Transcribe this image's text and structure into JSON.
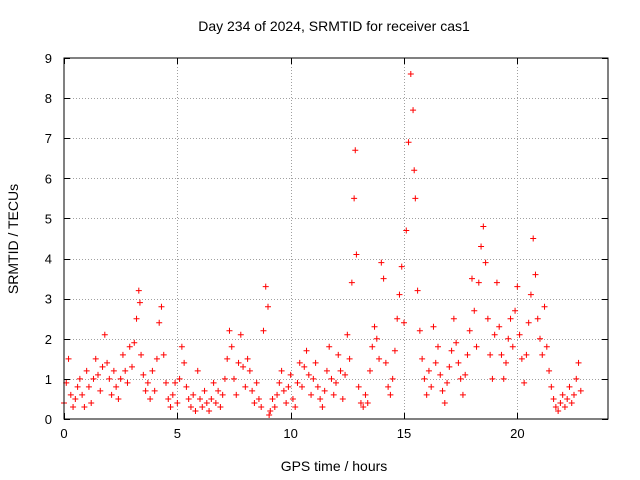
{
  "chart_data": {
    "type": "scatter",
    "title": "Day 234 of 2024, SRMTID for receiver cas1",
    "xlabel": "GPS time / hours",
    "ylabel": "SRMTID / TECUs",
    "xlim": [
      0,
      24
    ],
    "ylim": [
      0,
      9
    ],
    "xticks": [
      0,
      5,
      10,
      15,
      20
    ],
    "xtick_labels": [
      "0",
      "5",
      "10",
      "15",
      "20"
    ],
    "yticks": [
      0,
      1,
      2,
      3,
      4,
      5,
      6,
      7,
      8,
      9
    ],
    "ytick_labels": [
      "0",
      "1",
      "2",
      "3",
      "4",
      "5",
      "6",
      "7",
      "8",
      "9"
    ],
    "grid": true,
    "marker": "+",
    "colors": {
      "series": "#ff0000",
      "grid": "#a0a0a0",
      "axis": "#000000"
    },
    "series": [
      {
        "name": "SRMTID",
        "x": [
          0.0,
          0.1,
          0.2,
          0.3,
          0.4,
          0.5,
          0.6,
          0.7,
          0.8,
          0.9,
          1.0,
          1.1,
          1.2,
          1.3,
          1.4,
          1.5,
          1.6,
          1.7,
          1.8,
          1.9,
          2.0,
          2.1,
          2.2,
          2.3,
          2.4,
          2.5,
          2.6,
          2.7,
          2.8,
          2.9,
          3.0,
          3.1,
          3.2,
          3.3,
          3.35,
          3.4,
          3.5,
          3.6,
          3.7,
          3.8,
          3.9,
          4.0,
          4.1,
          4.2,
          4.3,
          4.4,
          4.5,
          4.6,
          4.7,
          4.8,
          4.9,
          5.0,
          5.1,
          5.2,
          5.3,
          5.4,
          5.5,
          5.6,
          5.7,
          5.8,
          5.9,
          6.0,
          6.1,
          6.2,
          6.3,
          6.4,
          6.5,
          6.6,
          6.7,
          6.8,
          6.9,
          7.0,
          7.1,
          7.2,
          7.3,
          7.4,
          7.5,
          7.6,
          7.7,
          7.8,
          7.9,
          8.0,
          8.1,
          8.2,
          8.3,
          8.4,
          8.5,
          8.6,
          8.7,
          8.8,
          8.9,
          9.0,
          9.05,
          9.1,
          9.2,
          9.3,
          9.4,
          9.5,
          9.6,
          9.7,
          9.8,
          9.9,
          10.0,
          10.1,
          10.2,
          10.3,
          10.4,
          10.5,
          10.6,
          10.7,
          10.8,
          10.9,
          11.0,
          11.1,
          11.2,
          11.3,
          11.4,
          11.5,
          11.6,
          11.7,
          11.8,
          11.9,
          12.0,
          12.1,
          12.2,
          12.3,
          12.4,
          12.5,
          12.6,
          12.7,
          12.8,
          12.85,
          12.9,
          13.0,
          13.1,
          13.2,
          13.3,
          13.4,
          13.5,
          13.6,
          13.7,
          13.8,
          13.9,
          14.0,
          14.1,
          14.2,
          14.3,
          14.4,
          14.5,
          14.6,
          14.7,
          14.8,
          14.9,
          15.0,
          15.1,
          15.2,
          15.3,
          15.4,
          15.45,
          15.5,
          15.6,
          15.7,
          15.8,
          15.9,
          16.0,
          16.1,
          16.2,
          16.3,
          16.4,
          16.5,
          16.6,
          16.7,
          16.8,
          16.9,
          17.0,
          17.1,
          17.2,
          17.3,
          17.4,
          17.5,
          17.6,
          17.7,
          17.8,
          17.9,
          18.0,
          18.1,
          18.2,
          18.3,
          18.4,
          18.5,
          18.6,
          18.7,
          18.8,
          18.9,
          19.0,
          19.1,
          19.2,
          19.3,
          19.4,
          19.5,
          19.6,
          19.7,
          19.8,
          19.9,
          20.0,
          20.1,
          20.2,
          20.3,
          20.4,
          20.5,
          20.6,
          20.7,
          20.8,
          20.9,
          21.0,
          21.1,
          21.2,
          21.3,
          21.4,
          21.5,
          21.6,
          21.7,
          21.8,
          21.9,
          22.0,
          22.1,
          22.2,
          22.3,
          22.4,
          22.5,
          22.6,
          22.7,
          22.8
        ],
        "y": [
          0.4,
          0.9,
          1.5,
          0.6,
          0.3,
          0.5,
          0.8,
          1.0,
          0.6,
          0.3,
          1.2,
          0.8,
          0.4,
          1.0,
          1.5,
          1.1,
          0.7,
          1.3,
          2.1,
          1.4,
          1.0,
          0.6,
          1.2,
          0.8,
          0.5,
          1.0,
          1.6,
          1.2,
          0.9,
          1.8,
          1.3,
          1.9,
          2.5,
          3.2,
          2.9,
          1.6,
          1.1,
          0.7,
          0.9,
          0.5,
          1.2,
          0.7,
          1.5,
          2.4,
          2.8,
          1.6,
          0.9,
          0.5,
          0.3,
          0.6,
          0.9,
          0.4,
          1.0,
          1.8,
          1.4,
          0.8,
          0.5,
          0.3,
          0.6,
          0.2,
          1.2,
          0.5,
          0.3,
          0.7,
          0.4,
          0.2,
          0.5,
          0.9,
          0.4,
          0.7,
          0.3,
          0.6,
          1.0,
          1.5,
          2.2,
          1.8,
          1.0,
          0.6,
          1.4,
          2.1,
          1.3,
          0.8,
          1.5,
          1.2,
          0.7,
          0.4,
          0.9,
          0.5,
          0.3,
          2.2,
          3.3,
          2.8,
          0.1,
          0.2,
          0.5,
          0.3,
          0.6,
          0.9,
          1.2,
          0.7,
          0.4,
          0.8,
          1.1,
          0.5,
          0.3,
          0.9,
          1.4,
          0.8,
          1.3,
          1.7,
          1.1,
          0.6,
          1.0,
          1.4,
          0.8,
          0.5,
          0.3,
          0.7,
          1.2,
          1.8,
          1.0,
          0.6,
          0.9,
          1.6,
          1.2,
          0.5,
          1.1,
          2.1,
          1.5,
          3.4,
          5.5,
          6.7,
          4.1,
          0.8,
          0.4,
          0.3,
          0.6,
          0.4,
          1.2,
          1.8,
          2.3,
          2.0,
          1.5,
          3.9,
          3.5,
          1.4,
          0.8,
          0.6,
          1.0,
          1.7,
          2.5,
          3.1,
          3.8,
          2.4,
          4.7,
          6.9,
          8.6,
          7.7,
          6.2,
          5.5,
          3.2,
          2.2,
          1.5,
          1.0,
          0.6,
          1.2,
          0.8,
          2.3,
          1.4,
          1.8,
          1.1,
          0.7,
          0.4,
          0.9,
          1.3,
          1.7,
          2.5,
          1.9,
          1.4,
          1.0,
          0.6,
          1.1,
          1.6,
          2.2,
          3.5,
          2.7,
          1.8,
          3.4,
          4.3,
          4.8,
          3.9,
          2.5,
          1.6,
          1.0,
          2.1,
          3.4,
          2.3,
          1.6,
          1.0,
          1.4,
          2.0,
          2.5,
          1.8,
          2.7,
          3.3,
          2.1,
          1.5,
          0.9,
          1.6,
          2.4,
          3.1,
          4.5,
          3.6,
          2.5,
          2.0,
          1.6,
          2.8,
          1.8,
          1.2,
          0.8,
          0.5,
          0.3,
          0.2,
          0.4,
          0.6,
          0.3,
          0.5,
          0.8,
          0.4,
          0.6,
          1.0,
          1.4,
          0.7
        ]
      }
    ]
  }
}
